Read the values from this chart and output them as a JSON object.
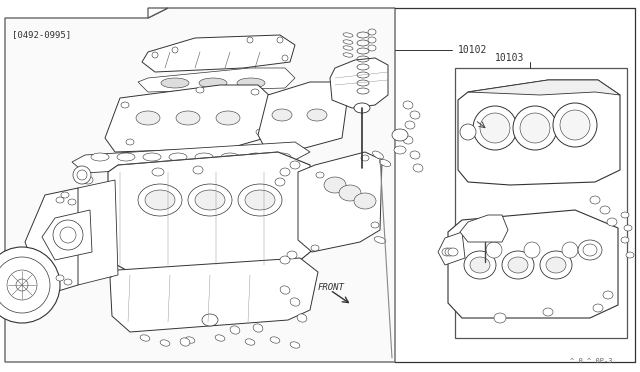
{
  "bg_color": "#ffffff",
  "panel_bg": "#ffffff",
  "line_color": "#333333",
  "light_line": "#666666",
  "main_label": "[0492-0995]",
  "part_number_bare": "10102",
  "part_number_short": "10103",
  "front_label": "FRONT",
  "bottom_label": "^ 0 ^ 0P-3",
  "lw_main": 0.8,
  "lw_thin": 0.5,
  "lw_thick": 1.0,
  "fig_w": 6.4,
  "fig_h": 3.72,
  "dpi": 100
}
